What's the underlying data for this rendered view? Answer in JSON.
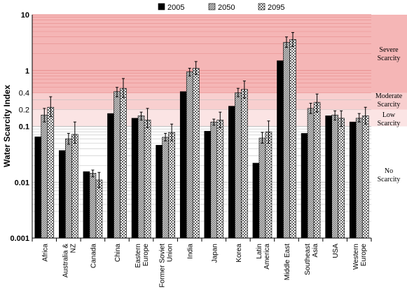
{
  "chart_data": {
    "type": "bar",
    "ylabel": "Water Scarcity Index",
    "xlabel": "",
    "yscale": "log",
    "ylim": [
      0.001,
      10
    ],
    "y_ticks": [
      {
        "value": 10,
        "label": "10",
        "bold": true
      },
      {
        "value": 1,
        "label": "1",
        "bold": true
      },
      {
        "value": 0.4,
        "label": "0.4",
        "bold": false
      },
      {
        "value": 0.2,
        "label": "0.2",
        "bold": false
      },
      {
        "value": 0.1,
        "label": "0.1",
        "bold": true
      },
      {
        "value": 0.01,
        "label": "0.01",
        "bold": true
      },
      {
        "value": 0.001,
        "label": "0.001",
        "bold": true
      }
    ],
    "grid": true,
    "legend_position": "top-center",
    "categories": [
      "Africa",
      "Australia & NZ",
      "Canada",
      "China",
      "Eastern Europe",
      "Former Soviet Union",
      "India",
      "Japan",
      "Korea",
      "Latin America",
      "Middle East",
      "Southeast Asia",
      "USA",
      "Western Europe"
    ],
    "series": [
      {
        "name": "2005",
        "pattern": "solid-black",
        "values": [
          0.065,
          0.037,
          0.0155,
          0.17,
          0.14,
          0.046,
          0.42,
          0.082,
          0.23,
          0.022,
          1.5,
          0.075,
          0.155,
          0.12
        ],
        "errors": [
          null,
          null,
          null,
          null,
          null,
          null,
          null,
          null,
          null,
          null,
          null,
          null,
          null,
          null
        ]
      },
      {
        "name": "2050",
        "pattern": "grey-hatch",
        "values": [
          0.16,
          0.06,
          0.0145,
          0.42,
          0.155,
          0.064,
          0.95,
          0.12,
          0.4,
          0.062,
          3.2,
          0.21,
          0.16,
          0.14
        ],
        "errors": [
          [
            0.12,
            0.21
          ],
          [
            0.048,
            0.075
          ],
          [
            0.0125,
            0.0165
          ],
          [
            0.34,
            0.5
          ],
          [
            0.13,
            0.18
          ],
          [
            0.055,
            0.075
          ],
          [
            0.8,
            1.1
          ],
          [
            0.105,
            0.135
          ],
          [
            0.34,
            0.48
          ],
          [
            0.05,
            0.078
          ],
          [
            2.6,
            4.0
          ],
          [
            0.17,
            0.26
          ],
          [
            0.13,
            0.19
          ],
          [
            0.12,
            0.17
          ]
        ]
      },
      {
        "name": "2095",
        "pattern": "checker",
        "values": [
          0.22,
          0.072,
          0.011,
          0.48,
          0.13,
          0.078,
          1.1,
          0.13,
          0.46,
          0.08,
          3.6,
          0.27,
          0.14,
          0.155
        ],
        "errors": [
          [
            0.15,
            0.34
          ],
          [
            0.05,
            0.12
          ],
          [
            0.008,
            0.015
          ],
          [
            0.33,
            0.72
          ],
          [
            0.095,
            0.21
          ],
          [
            0.055,
            0.11
          ],
          [
            0.85,
            1.45
          ],
          [
            0.095,
            0.18
          ],
          [
            0.32,
            0.65
          ],
          [
            0.05,
            0.125
          ],
          [
            2.7,
            4.8
          ],
          [
            0.18,
            0.38
          ],
          [
            0.1,
            0.19
          ],
          [
            0.11,
            0.22
          ]
        ]
      }
    ],
    "zones": [
      {
        "name": "Severe Scarcity",
        "from": 0.4,
        "to": 10,
        "color": "#f5b6b6"
      },
      {
        "name": "Moderate Scarcity",
        "from": 0.2,
        "to": 0.4,
        "color": "#f8cfcf"
      },
      {
        "name": "Low Scarcity",
        "from": 0.1,
        "to": 0.2,
        "color": "#fbe4e4"
      },
      {
        "name": "No Scarcity",
        "from": 0.001,
        "to": 0.1,
        "color": "#ffffff"
      }
    ],
    "zone_labels": [
      {
        "lines": [
          "Severe",
          "Scarcity"
        ]
      },
      {
        "lines": [
          "Moderate",
          "Scarcity"
        ]
      },
      {
        "lines": [
          "Low",
          "Scarcity"
        ]
      },
      {
        "lines": [
          "No",
          "Scarcity"
        ]
      }
    ],
    "colors": {
      "bar_2005": "#000000",
      "severe_line": "#e88c8c",
      "grid": "#bfbfbf"
    }
  }
}
